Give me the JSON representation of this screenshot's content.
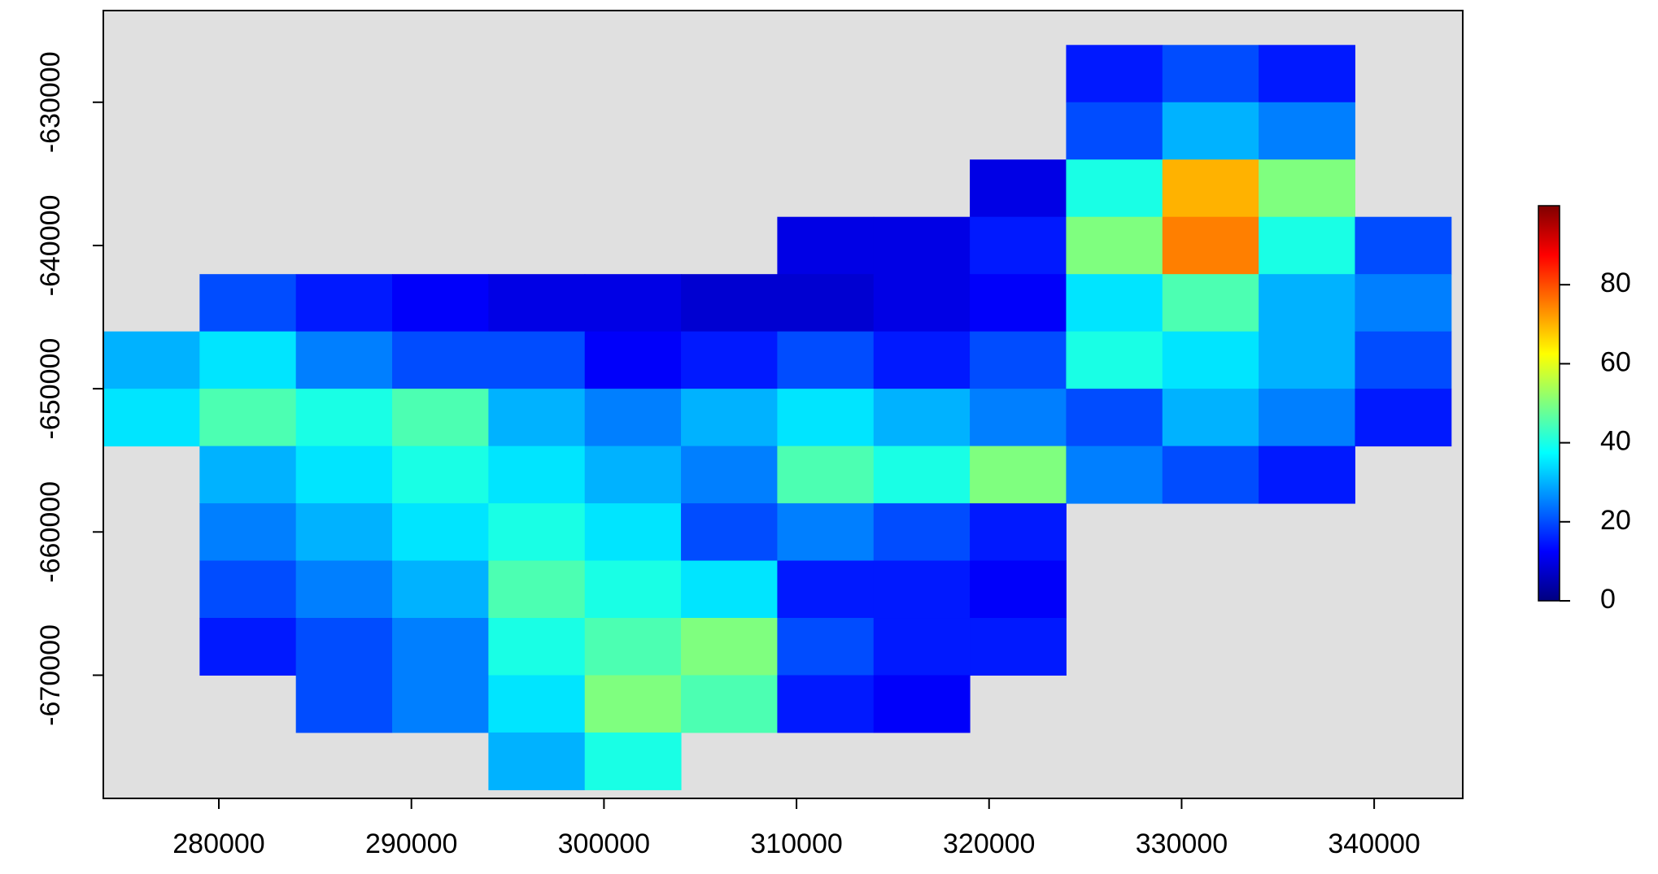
{
  "chart_data": {
    "type": "heatmap",
    "x": [
      276500,
      281500,
      286500,
      291500,
      296500,
      301500,
      306500,
      311500,
      316500,
      321500,
      326500,
      331500,
      336500,
      341500
    ],
    "y": [
      -628000,
      -632000,
      -636000,
      -640000,
      -644000,
      -648000,
      -652000,
      -656000,
      -660000,
      -664000,
      -668000,
      -672000,
      -676000
    ],
    "values": [
      [
        null,
        null,
        null,
        null,
        null,
        null,
        null,
        null,
        null,
        null,
        15,
        20,
        15,
        null
      ],
      [
        null,
        null,
        null,
        null,
        null,
        null,
        null,
        null,
        null,
        null,
        20,
        30,
        25,
        null
      ],
      [
        null,
        null,
        null,
        null,
        null,
        null,
        null,
        null,
        null,
        10,
        40,
        70,
        50,
        null
      ],
      [
        null,
        null,
        null,
        null,
        null,
        null,
        null,
        10,
        10,
        15,
        50,
        75,
        40,
        20
      ],
      [
        null,
        20,
        15,
        12,
        10,
        10,
        8,
        8,
        10,
        12,
        35,
        45,
        30,
        25
      ],
      [
        30,
        35,
        25,
        20,
        20,
        12,
        15,
        20,
        15,
        20,
        40,
        35,
        30,
        20
      ],
      [
        35,
        45,
        40,
        45,
        30,
        25,
        30,
        35,
        30,
        25,
        20,
        30,
        25,
        15
      ],
      [
        null,
        30,
        35,
        40,
        35,
        30,
        25,
        45,
        40,
        50,
        25,
        20,
        15,
        null
      ],
      [
        null,
        25,
        30,
        35,
        40,
        35,
        20,
        25,
        20,
        15,
        null,
        null,
        null,
        null
      ],
      [
        null,
        20,
        25,
        30,
        45,
        40,
        35,
        15,
        15,
        12,
        null,
        null,
        null,
        null
      ],
      [
        null,
        15,
        20,
        25,
        40,
        45,
        50,
        20,
        15,
        15,
        null,
        null,
        null,
        null
      ],
      [
        null,
        null,
        20,
        25,
        35,
        50,
        45,
        15,
        12,
        null,
        null,
        null,
        null,
        null
      ],
      [
        null,
        null,
        null,
        null,
        30,
        40,
        null,
        null,
        null,
        null,
        null,
        null,
        null,
        null
      ]
    ],
    "xlim": [
      274000,
      344600
    ],
    "ylim": [
      -678600,
      -623600
    ],
    "xticks": [
      280000,
      290000,
      300000,
      310000,
      320000,
      330000,
      340000
    ],
    "yticks": [
      -630000,
      -640000,
      -650000,
      -660000,
      -670000
    ],
    "zlim": [
      0,
      100
    ],
    "zticks": [
      0,
      20,
      40,
      60,
      80
    ],
    "colors": [
      "#00007f",
      "#0000ff",
      "#007fff",
      "#00ffff",
      "#7fff7f",
      "#ffff00",
      "#ff7f00",
      "#ff0000",
      "#7f0000"
    ],
    "background": "#e0e0e0"
  }
}
